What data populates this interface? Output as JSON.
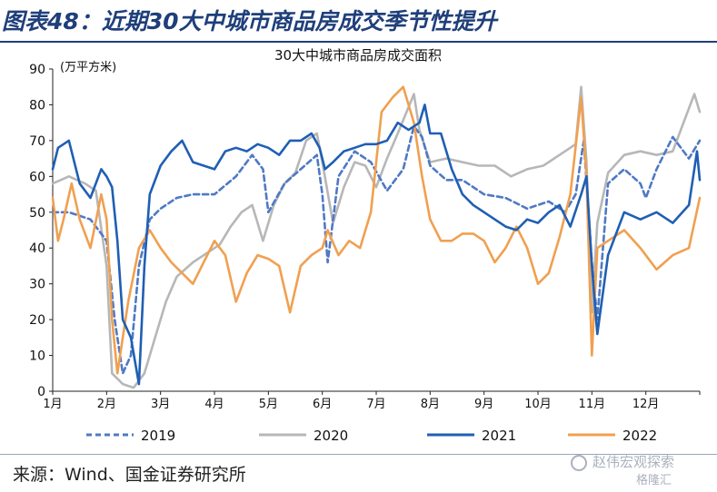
{
  "header": {
    "title": "图表48：近期30大中城市商品房成交季节性提升"
  },
  "footer": {
    "source": "来源：Wind、国金证券研究所"
  },
  "watermark": {
    "text": "赵伟宏观探索",
    "sub": "格隆汇"
  },
  "chart_data": {
    "type": "line",
    "title": "30大中城市商品房成交面积",
    "ylabel": "(万平方米)",
    "xlabel": "",
    "ylim": [
      0,
      90
    ],
    "yticks": [
      0,
      10,
      20,
      30,
      40,
      50,
      60,
      70,
      80,
      90
    ],
    "xlim": [
      0,
      12
    ],
    "xticks": [
      "1月",
      "2月",
      "3月",
      "4月",
      "5月",
      "6月",
      "7月",
      "8月",
      "9月",
      "10月",
      "11月",
      "12月"
    ],
    "grid": false,
    "legend_position": "bottom",
    "series": [
      {
        "name": "2019",
        "color": "#4f79c4",
        "dash": true,
        "x": [
          0,
          0.3,
          0.7,
          1.0,
          1.15,
          1.3,
          1.45,
          1.6,
          1.8,
          2.0,
          2.3,
          2.6,
          3.0,
          3.4,
          3.7,
          3.9,
          4.0,
          4.3,
          4.6,
          4.9,
          5.0,
          5.1,
          5.3,
          5.6,
          5.9,
          6.2,
          6.5,
          6.7,
          6.85,
          7.0,
          7.3,
          7.6,
          8.0,
          8.4,
          8.8,
          9.2,
          9.5,
          9.7,
          9.85,
          10.0,
          10.1,
          10.3,
          10.6,
          10.9,
          11.0,
          11.2,
          11.5,
          11.8,
          12.0
        ],
        "values": [
          50,
          50,
          48,
          42,
          20,
          5,
          10,
          35,
          48,
          51,
          54,
          55,
          55,
          60,
          66,
          62,
          50,
          58,
          62,
          66,
          55,
          36,
          60,
          67,
          64,
          56,
          62,
          74,
          71,
          63,
          59,
          59,
          55,
          54,
          51,
          53,
          50,
          55,
          70,
          36,
          20,
          58,
          62,
          58,
          54,
          62,
          71,
          65,
          70
        ]
      },
      {
        "name": "2020",
        "color": "#b7b7b7",
        "dash": false,
        "x": [
          0,
          0.3,
          0.6,
          0.8,
          1.0,
          1.1,
          1.3,
          1.5,
          1.7,
          1.9,
          2.1,
          2.3,
          2.6,
          2.9,
          3.1,
          3.3,
          3.5,
          3.7,
          3.9,
          4.1,
          4.3,
          4.5,
          4.7,
          4.9,
          5.0,
          5.2,
          5.4,
          5.6,
          5.8,
          6.0,
          6.2,
          6.4,
          6.7,
          6.8,
          7.0,
          7.3,
          7.6,
          7.9,
          8.2,
          8.5,
          8.8,
          9.1,
          9.4,
          9.7,
          9.8,
          9.9,
          10.0,
          10.1,
          10.3,
          10.6,
          10.9,
          11.2,
          11.5,
          11.8,
          11.9,
          12.0
        ],
        "values": [
          58,
          60,
          58,
          56,
          35,
          5,
          2,
          1,
          5,
          15,
          25,
          32,
          36,
          39,
          41,
          46,
          50,
          52,
          42,
          52,
          58,
          61,
          70,
          72,
          64,
          47,
          57,
          64,
          63,
          57,
          65,
          72,
          83,
          73,
          64,
          65,
          64,
          63,
          63,
          60,
          62,
          63,
          66,
          69,
          85,
          64,
          22,
          47,
          61,
          66,
          67,
          66,
          67,
          79,
          83,
          78
        ]
      },
      {
        "name": "2021",
        "color": "#1f5fb4",
        "dash": false,
        "x": [
          0,
          0.1,
          0.3,
          0.5,
          0.7,
          0.9,
          1.0,
          1.1,
          1.2,
          1.3,
          1.45,
          1.6,
          1.7,
          1.8,
          2.0,
          2.2,
          2.4,
          2.6,
          2.8,
          3.0,
          3.2,
          3.4,
          3.6,
          3.8,
          4.0,
          4.2,
          4.4,
          4.6,
          4.8,
          4.95,
          5.05,
          5.2,
          5.4,
          5.6,
          5.8,
          6.0,
          6.2,
          6.4,
          6.6,
          6.8,
          6.9,
          7.0,
          7.2,
          7.4,
          7.6,
          7.8,
          8.0,
          8.2,
          8.4,
          8.6,
          8.8,
          9.0,
          9.2,
          9.4,
          9.6,
          9.8,
          9.9,
          10.0,
          10.1,
          10.3,
          10.6,
          10.9,
          11.2,
          11.5,
          11.8,
          11.95,
          12.0
        ],
        "values": [
          62,
          68,
          70,
          58,
          54,
          62,
          60,
          57,
          42,
          20,
          15,
          2,
          35,
          55,
          63,
          67,
          70,
          64,
          63,
          62,
          67,
          68,
          67,
          69,
          68,
          66,
          70,
          70,
          72,
          68,
          62,
          64,
          67,
          68,
          69,
          69,
          70,
          75,
          73,
          75,
          80,
          72,
          72,
          62,
          55,
          52,
          50,
          48,
          46,
          45,
          48,
          47,
          50,
          52,
          46,
          55,
          60,
          35,
          16,
          38,
          50,
          48,
          50,
          47,
          52,
          67,
          59
        ]
      },
      {
        "name": "2022",
        "color": "#f0a050",
        "dash": false,
        "x": [
          0,
          0.1,
          0.2,
          0.35,
          0.5,
          0.7,
          0.9,
          1.0,
          1.1,
          1.2,
          1.3,
          1.4,
          1.6,
          1.8,
          2.0,
          2.2,
          2.4,
          2.6,
          2.8,
          3.0,
          3.2,
          3.4,
          3.6,
          3.8,
          4.0,
          4.2,
          4.4,
          4.6,
          4.8,
          5.0,
          5.1,
          5.3,
          5.5,
          5.7,
          5.9,
          6.1,
          6.3,
          6.5,
          6.7,
          6.85,
          7.0,
          7.2,
          7.4,
          7.6,
          7.8,
          8.0,
          8.2,
          8.4,
          8.6,
          8.8,
          9.0,
          9.2,
          9.4,
          9.6,
          9.8,
          9.9,
          10.0,
          10.1,
          10.3,
          10.6,
          10.9,
          11.2,
          11.5,
          11.8,
          12.0
        ],
        "values": [
          54,
          42,
          48,
          58,
          48,
          40,
          55,
          48,
          20,
          5,
          15,
          25,
          40,
          45,
          40,
          36,
          33,
          30,
          36,
          42,
          38,
          25,
          33,
          38,
          37,
          35,
          22,
          35,
          38,
          40,
          45,
          38,
          42,
          40,
          50,
          78,
          82,
          85,
          75,
          60,
          48,
          42,
          42,
          44,
          44,
          42,
          36,
          40,
          46,
          40,
          30,
          33,
          43,
          55,
          82,
          60,
          10,
          40,
          42,
          45,
          40,
          34,
          38,
          40,
          54
        ]
      }
    ]
  }
}
